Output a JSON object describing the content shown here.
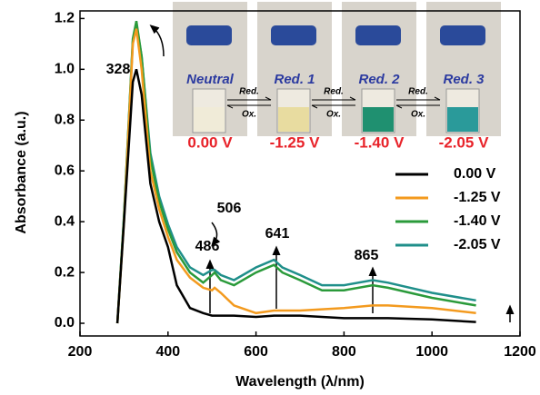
{
  "chart_data": {
    "type": "line",
    "xlabel": "Wavelength (λ/nm)",
    "ylabel": "Absorbance (a.u.)",
    "x": [
      285,
      300,
      320,
      328,
      340,
      360,
      380,
      400,
      420,
      450,
      480,
      500,
      506,
      520,
      550,
      600,
      641,
      660,
      700,
      750,
      800,
      865,
      900,
      1000,
      1100
    ],
    "series": [
      {
        "name": "0.00 V",
        "color": "#000000",
        "values": [
          0,
          0.4,
          0.95,
          1.0,
          0.9,
          0.55,
          0.4,
          0.3,
          0.15,
          0.06,
          0.04,
          0.03,
          0.03,
          0.03,
          0.03,
          0.025,
          0.03,
          0.03,
          0.03,
          0.025,
          0.02,
          0.02,
          0.02,
          0.015,
          0.005
        ]
      },
      {
        "name": "-1.25 V",
        "color": "#f39a1e",
        "values": [
          0,
          0.4,
          1.1,
          1.16,
          1.0,
          0.6,
          0.45,
          0.34,
          0.25,
          0.18,
          0.14,
          0.13,
          0.14,
          0.12,
          0.07,
          0.04,
          0.05,
          0.05,
          0.05,
          0.055,
          0.06,
          0.07,
          0.07,
          0.06,
          0.04
        ]
      },
      {
        "name": "-1.40 V",
        "color": "#2a9a3a",
        "values": [
          0,
          0.42,
          1.12,
          1.19,
          1.05,
          0.65,
          0.48,
          0.37,
          0.28,
          0.2,
          0.16,
          0.19,
          0.2,
          0.17,
          0.15,
          0.2,
          0.23,
          0.2,
          0.17,
          0.13,
          0.13,
          0.15,
          0.14,
          0.1,
          0.07
        ]
      },
      {
        "name": "-2.05 V",
        "color": "#1f8f8a",
        "values": [
          0,
          0.42,
          1.11,
          1.18,
          1.05,
          0.67,
          0.5,
          0.39,
          0.3,
          0.22,
          0.19,
          0.21,
          0.21,
          0.19,
          0.17,
          0.22,
          0.25,
          0.22,
          0.19,
          0.15,
          0.15,
          0.17,
          0.16,
          0.12,
          0.09
        ]
      }
    ],
    "xlim": [
      200,
      1200
    ],
    "ylim": [
      -0.05,
      1.23
    ],
    "xticks": [
      200,
      400,
      600,
      800,
      1000,
      1200
    ],
    "yticks": [
      {
        "value": 0,
        "label": "0.0"
      },
      0.2,
      0.4,
      0.6,
      0.8,
      {
        "value": 1,
        "label": "1.0"
      },
      1.2
    ],
    "legend": "right",
    "annotations": [
      "328",
      "506",
      "486",
      "641",
      "865"
    ],
    "inset": {
      "states": [
        "Neutral",
        "Red. 1",
        "Red. 2",
        "Red. 3"
      ],
      "voltages": [
        "0.00 V",
        "-1.25 V",
        "-1.40 V",
        "-2.05 V"
      ],
      "arrows": [
        [
          "Red.",
          "Ox."
        ],
        [
          "Red.",
          "Ox."
        ],
        [
          "Red.",
          "Ox."
        ]
      ]
    }
  }
}
